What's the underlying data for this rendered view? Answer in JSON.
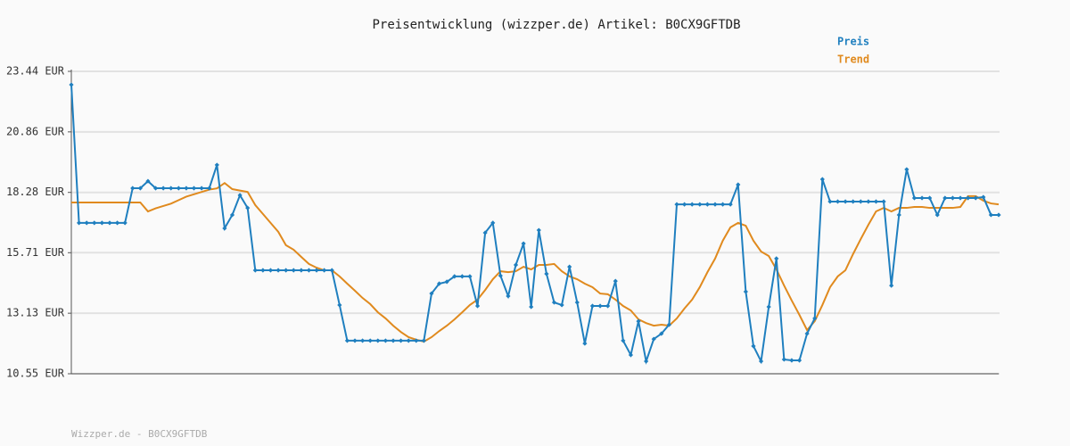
{
  "chart_data": {
    "type": "line",
    "title": "Preisentwicklung (wizzper.de) Artikel: B0CX9GFTDB",
    "footer": "Wizzper.de - B0CX9GFTDB",
    "ylim": [
      10.55,
      23.44
    ],
    "yticks": [
      {
        "value": 10.55,
        "label": "10.55 EUR"
      },
      {
        "value": 13.13,
        "label": "13.13 EUR"
      },
      {
        "value": 15.71,
        "label": "15.71 EUR"
      },
      {
        "value": 18.28,
        "label": "18.28 EUR"
      },
      {
        "value": 20.86,
        "label": "20.86 EUR"
      },
      {
        "value": 23.44,
        "label": "23.44 EUR"
      }
    ],
    "grid": true,
    "legend": "top-right",
    "series": [
      {
        "name": "Preis",
        "color": "#1f7fbf",
        "markers": true,
        "values": [
          22.87,
          16.98,
          16.98,
          16.98,
          16.98,
          16.98,
          16.98,
          16.98,
          18.46,
          18.46,
          18.76,
          18.46,
          18.46,
          18.46,
          18.46,
          18.46,
          18.46,
          18.46,
          18.46,
          19.45,
          16.75,
          17.32,
          18.16,
          17.62,
          14.96,
          14.96,
          14.96,
          14.96,
          14.96,
          14.96,
          14.96,
          14.96,
          14.96,
          14.96,
          14.96,
          13.48,
          11.96,
          11.96,
          11.96,
          11.96,
          11.96,
          11.96,
          11.96,
          11.96,
          11.96,
          11.96,
          11.96,
          13.97,
          14.39,
          14.47,
          14.7,
          14.7,
          14.7,
          13.44,
          16.56,
          16.98,
          14.73,
          13.86,
          15.19,
          16.1,
          13.4,
          16.67,
          14.81,
          13.59,
          13.48,
          15.11,
          13.59,
          11.84,
          13.44,
          13.44,
          13.44,
          14.5,
          11.96,
          11.35,
          12.79,
          11.08,
          12.03,
          12.26,
          12.64,
          17.77,
          17.77,
          17.77,
          17.77,
          17.77,
          17.77,
          17.77,
          17.77,
          18.61,
          14.05,
          11.73,
          11.08,
          13.4,
          15.46,
          11.16,
          11.12,
          11.12,
          12.26,
          12.91,
          18.84,
          17.89,
          17.89,
          17.89,
          17.89,
          17.89,
          17.89,
          17.89,
          17.89,
          14.31,
          17.32,
          19.26,
          18.04,
          18.04,
          18.04,
          17.32,
          18.04,
          18.04,
          18.04,
          18.04,
          18.04,
          18.08,
          17.32,
          17.32
        ]
      },
      {
        "name": "Trend",
        "color": "#e08a1e",
        "markers": false,
        "values": [
          17.85,
          17.85,
          17.85,
          17.85,
          17.85,
          17.85,
          17.85,
          17.85,
          17.85,
          17.85,
          17.47,
          17.6,
          17.7,
          17.8,
          17.95,
          18.1,
          18.2,
          18.3,
          18.4,
          18.45,
          18.68,
          18.42,
          18.36,
          18.3,
          17.74,
          17.36,
          16.98,
          16.6,
          16.03,
          15.84,
          15.53,
          15.23,
          15.07,
          14.96,
          14.96,
          14.7,
          14.39,
          14.09,
          13.78,
          13.52,
          13.17,
          12.91,
          12.6,
          12.33,
          12.11,
          12.0,
          11.92,
          12.11,
          12.37,
          12.6,
          12.87,
          13.17,
          13.48,
          13.71,
          14.12,
          14.58,
          14.92,
          14.88,
          14.92,
          15.11,
          15.0,
          15.19,
          15.19,
          15.23,
          14.92,
          14.7,
          14.58,
          14.39,
          14.24,
          13.97,
          13.94,
          13.71,
          13.44,
          13.25,
          12.87,
          12.71,
          12.6,
          12.64,
          12.6,
          12.91,
          13.33,
          13.71,
          14.24,
          14.88,
          15.46,
          16.22,
          16.79,
          16.98,
          16.86,
          16.22,
          15.76,
          15.57,
          15.0,
          14.31,
          13.67,
          13.06,
          12.41,
          12.79,
          13.48,
          14.24,
          14.7,
          14.96,
          15.65,
          16.29,
          16.9,
          17.47,
          17.62,
          17.47,
          17.62,
          17.62,
          17.66,
          17.66,
          17.62,
          17.62,
          17.62,
          17.62,
          17.66,
          18.12,
          18.12,
          17.93,
          17.81,
          17.77
        ]
      }
    ]
  }
}
